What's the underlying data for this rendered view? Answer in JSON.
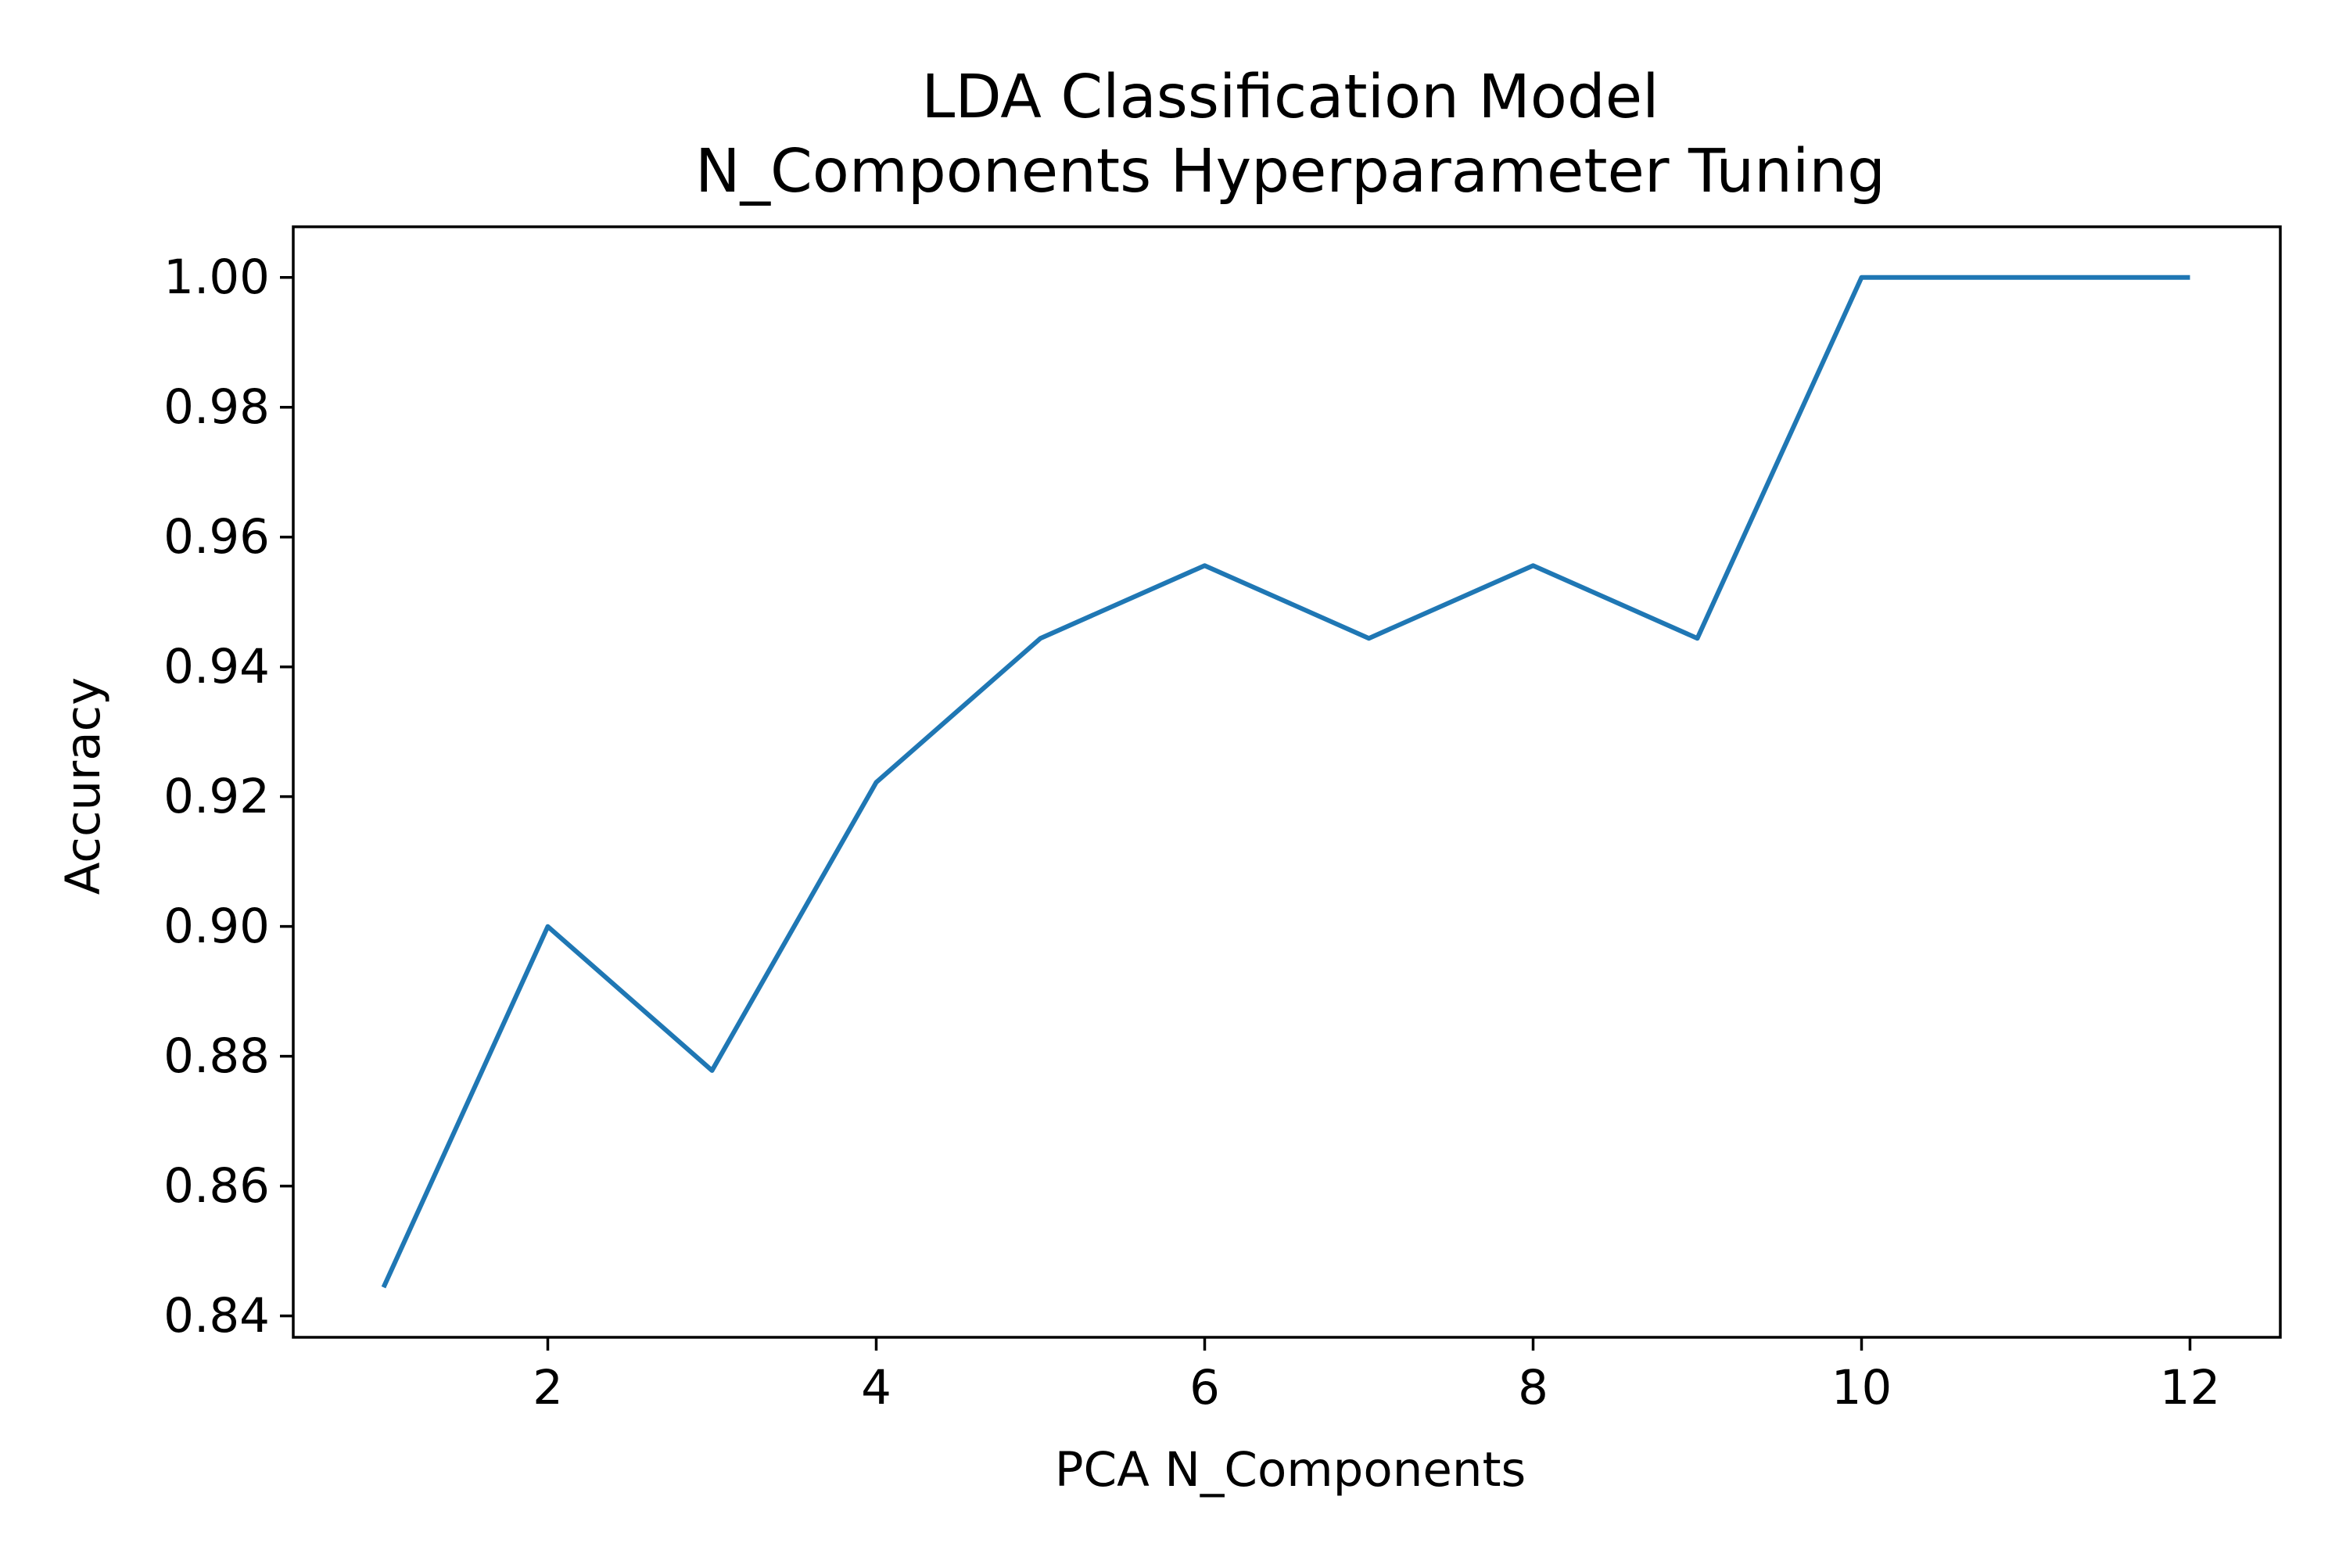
{
  "chart_data": {
    "type": "line",
    "title_lines": [
      "LDA Classification Model",
      "N_Components Hyperparameter Tuning"
    ],
    "xlabel": "PCA N_Components",
    "ylabel": "Accuracy",
    "xlim": [
      0.45,
      12.55
    ],
    "ylim": [
      0.8367,
      1.0078
    ],
    "xticks": [
      2,
      4,
      6,
      8,
      10,
      12
    ],
    "xtick_labels": [
      "2",
      "4",
      "6",
      "8",
      "10",
      "12"
    ],
    "yticks": [
      0.84,
      0.86,
      0.88,
      0.9,
      0.92,
      0.94,
      0.96,
      0.98,
      1.0
    ],
    "ytick_labels": [
      "0.84",
      "0.86",
      "0.88",
      "0.90",
      "0.92",
      "0.94",
      "0.96",
      "0.98",
      "1.00"
    ],
    "grid": false,
    "series": [
      {
        "color": "#1f77b4",
        "x": [
          1,
          2,
          3,
          4,
          5,
          6,
          7,
          8,
          9,
          10,
          11,
          12
        ],
        "y": [
          0.8444,
          0.9,
          0.8778,
          0.9222,
          0.9444,
          0.9556,
          0.9444,
          0.9556,
          0.9444,
          1.0,
          1.0,
          1.0
        ]
      }
    ]
  }
}
